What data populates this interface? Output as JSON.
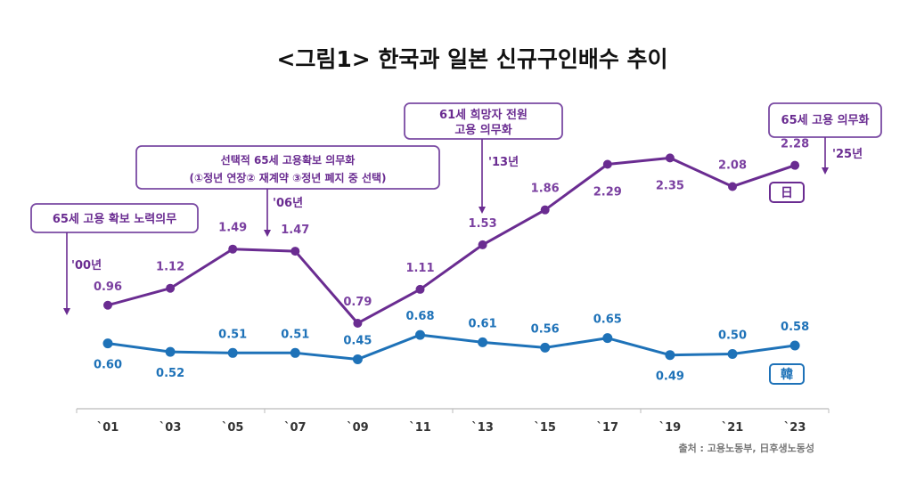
{
  "chart_data": {
    "type": "line",
    "title": "<그림1> 한국과 일본 신규구인배수 추이",
    "xlabel": "",
    "ylabel": "",
    "categories": [
      "`01",
      "`03",
      "`05",
      "`07",
      "`09",
      "`11",
      "`13",
      "`15",
      "`17",
      "`19",
      "`21",
      "`23"
    ],
    "series": [
      {
        "name": "日",
        "color": "#6a2c91",
        "values": [
          0.96,
          1.12,
          1.49,
          1.47,
          0.79,
          1.11,
          1.53,
          1.86,
          2.29,
          2.35,
          2.08,
          2.28
        ],
        "labels": [
          "0.96",
          "1.12",
          "1.49",
          "1.47",
          "0.79",
          "1.11",
          "1.53",
          "1.86",
          "2.29",
          "2.35",
          "2.08",
          "2.28"
        ]
      },
      {
        "name": "韓",
        "color": "#1e72b8",
        "values": [
          0.6,
          0.52,
          0.51,
          0.51,
          0.45,
          0.68,
          0.61,
          0.56,
          0.65,
          0.49,
          0.5,
          0.58
        ],
        "labels": [
          "0.60",
          "0.52",
          "0.51",
          "0.51",
          "0.45",
          "0.68",
          "0.61",
          "0.56",
          "0.65",
          "0.49",
          "0.50",
          "0.58"
        ]
      }
    ],
    "ylim": [
      0,
      2.6
    ],
    "grid": false,
    "legend": "right, inline boxed labels",
    "annotations": [
      {
        "text_lines": [
          "65세 고용 확보 노력의무"
        ],
        "year": "'00년",
        "points_to": "2000"
      },
      {
        "text_lines": [
          "선택적 65세 고용확보 의무화",
          "(①정년 연장② 재계약 ③정년 폐지 중 선택)"
        ],
        "year": "'06년",
        "points_to": "2006"
      },
      {
        "text_lines": [
          "61세 희망자 전원",
          "고용 의무화"
        ],
        "year": "'13년",
        "points_to": "2013"
      },
      {
        "text_lines": [
          "65세 고용 의무화"
        ],
        "year": "'25년",
        "points_to": "2025"
      }
    ],
    "source": "출처 : 고용노동부, 日후생노동성"
  }
}
